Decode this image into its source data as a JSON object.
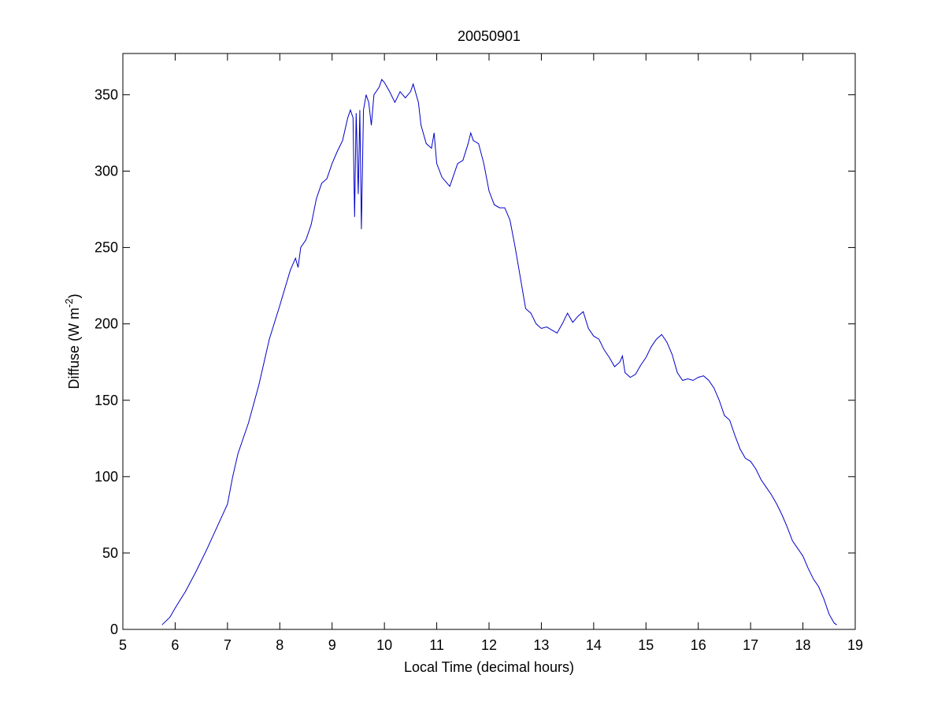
{
  "chart_data": {
    "type": "line",
    "title": "20050901",
    "xlabel": "Local Time (decimal hours)",
    "ylabel": [
      "Diffuse (W m",
      "-2",
      ")"
    ],
    "x": [
      5.75,
      5.9,
      6.0,
      6.2,
      6.4,
      6.6,
      6.8,
      7.0,
      7.1,
      7.2,
      7.4,
      7.6,
      7.8,
      8.0,
      8.2,
      8.3,
      8.35,
      8.4,
      8.5,
      8.6,
      8.7,
      8.8,
      8.9,
      9.0,
      9.1,
      9.2,
      9.3,
      9.35,
      9.4,
      9.43,
      9.46,
      9.5,
      9.53,
      9.56,
      9.6,
      9.65,
      9.7,
      9.75,
      9.8,
      9.9,
      9.95,
      10.0,
      10.1,
      10.2,
      10.3,
      10.4,
      10.5,
      10.55,
      10.65,
      10.7,
      10.8,
      10.9,
      10.95,
      11.0,
      11.1,
      11.2,
      11.25,
      11.3,
      11.4,
      11.5,
      11.6,
      11.65,
      11.7,
      11.8,
      11.9,
      12.0,
      12.1,
      12.2,
      12.3,
      12.4,
      12.5,
      12.6,
      12.7,
      12.8,
      12.9,
      13.0,
      13.1,
      13.2,
      13.3,
      13.4,
      13.5,
      13.6,
      13.7,
      13.8,
      13.9,
      14.0,
      14.1,
      14.2,
      14.3,
      14.4,
      14.5,
      14.55,
      14.6,
      14.7,
      14.8,
      14.9,
      15.0,
      15.1,
      15.2,
      15.3,
      15.4,
      15.5,
      15.6,
      15.7,
      15.8,
      15.9,
      16.0,
      16.1,
      16.2,
      16.3,
      16.4,
      16.5,
      16.6,
      16.7,
      16.8,
      16.9,
      17.0,
      17.1,
      17.2,
      17.3,
      17.4,
      17.5,
      17.6,
      17.7,
      17.8,
      17.9,
      18.0,
      18.1,
      18.2,
      18.3,
      18.4,
      18.5,
      18.6,
      18.65
    ],
    "series": [
      {
        "color": "#0000c8",
        "values": [
          3,
          8,
          14,
          25,
          38,
          52,
          67,
          82,
          100,
          115,
          135,
          160,
          190,
          212,
          235,
          243,
          237,
          250,
          255,
          265,
          282,
          292,
          295,
          305,
          313,
          320,
          335,
          340,
          335,
          270,
          338,
          285,
          340,
          262,
          340,
          350,
          345,
          330,
          350,
          355,
          360,
          358,
          352,
          345,
          352,
          348,
          352,
          357,
          345,
          330,
          318,
          315,
          325,
          305,
          296,
          292,
          290,
          295,
          305,
          307,
          318,
          325,
          320,
          318,
          305,
          287,
          278,
          276,
          276,
          268,
          250,
          230,
          210,
          207,
          200,
          197,
          198,
          196,
          194,
          200,
          207,
          201,
          205,
          208,
          197,
          192,
          190,
          183,
          178,
          172,
          175,
          179,
          168,
          165,
          167,
          173,
          178,
          185,
          190,
          193,
          188,
          180,
          168,
          163,
          164,
          163,
          165,
          166,
          163,
          158,
          150,
          140,
          137,
          127,
          118,
          112,
          110,
          105,
          98,
          93,
          88,
          82,
          75,
          67,
          58,
          53,
          48,
          40,
          33,
          28,
          20,
          10,
          4,
          3
        ]
      }
    ],
    "xlim": [
      5,
      19
    ],
    "ylim": [
      0,
      377
    ],
    "xticks": [
      5,
      6,
      7,
      8,
      9,
      10,
      11,
      12,
      13,
      14,
      15,
      16,
      17,
      18,
      19
    ],
    "yticks": [
      0,
      50,
      100,
      150,
      200,
      250,
      300,
      350
    ]
  }
}
